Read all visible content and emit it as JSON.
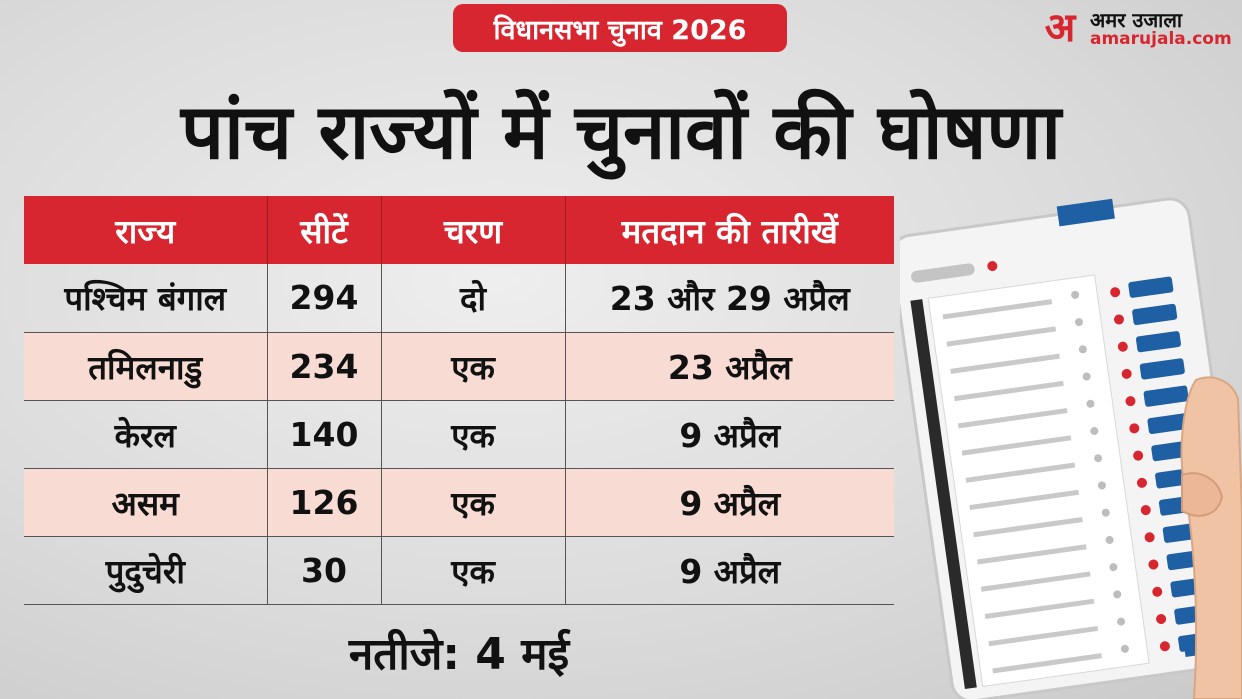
{
  "banner": {
    "tag": "विधानसभा चुनाव 2026"
  },
  "logo": {
    "mark": "अ",
    "name": "अमर उजाला",
    "domain": "amarujala.com"
  },
  "headline": "पांच राज्यों में चुनावों की घोषणा",
  "table": {
    "headers": [
      "राज्य",
      "सीटें",
      "चरण",
      "मतदान की तारीखें"
    ],
    "rows": [
      [
        "पश्चिम बंगाल",
        "294",
        "दो",
        "23 और 29 अप्रैल"
      ],
      [
        "तमिलनाडु",
        "234",
        "एक",
        "23 अप्रैल"
      ],
      [
        "केरल",
        "140",
        "एक",
        "9 अप्रैल"
      ],
      [
        "असम",
        "126",
        "एक",
        "9 अप्रैल"
      ],
      [
        "पुदुचेरी",
        "30",
        "एक",
        "9 अप्रैल"
      ]
    ]
  },
  "result": "नतीजे: 4 मई",
  "colors": {
    "accent": "#d7262f",
    "row_alt": "#f8dcd3",
    "evm_button": "#1f5fa3"
  },
  "illustration": {
    "icon": "evm-voting-machine-icon"
  }
}
